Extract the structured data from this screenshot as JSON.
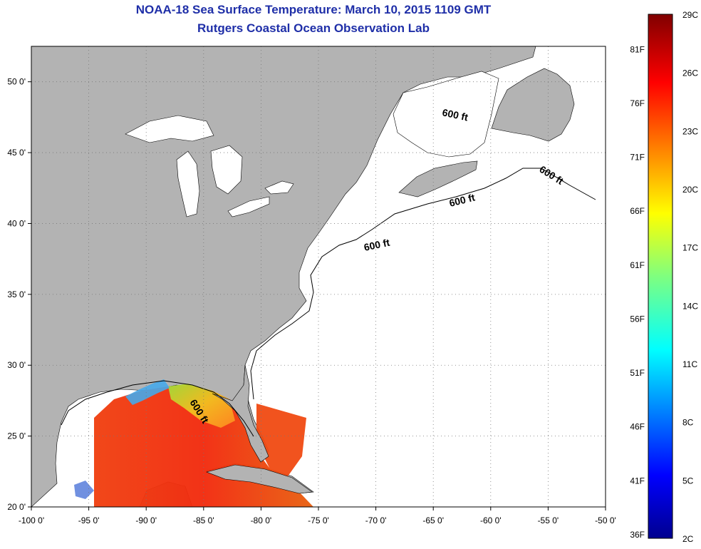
{
  "header": {
    "title": "NOAA-18 Sea Surface Temperature:  March 10, 2015 1109 GMT",
    "subtitle": "Rutgers Coastal Ocean Observation Lab"
  },
  "map": {
    "lon_range": [
      -100,
      -50
    ],
    "lat_range": [
      20,
      52.5
    ],
    "lon_ticks": [
      "-100 0'",
      "-95 0'",
      "-90 0'",
      "-85 0'",
      "-80 0'",
      "-75 0'",
      "-70 0'",
      "-65 0'",
      "-60 0'",
      "-55 0'",
      "-50 0'"
    ],
    "lat_ticks": [
      "20 0'",
      "25 0'",
      "30 0'",
      "35 0'",
      "40 0'",
      "45 0'",
      "50 0'"
    ],
    "contour_labels": [
      "600 ft",
      "600 ft",
      "600 ft",
      "600 ft",
      "600 ft"
    ],
    "land_color": "#b3b3b3",
    "water_color": "#ffffff"
  },
  "colorbar": {
    "celsius_labels": [
      "29C",
      "26C",
      "23C",
      "20C",
      "17C",
      "14C",
      "11C",
      "8C",
      "5C",
      "2C"
    ],
    "fahrenheit_labels": [
      "81F",
      "76F",
      "71F",
      "66F",
      "61F",
      "56F",
      "51F",
      "46F",
      "41F",
      "36F"
    ]
  }
}
